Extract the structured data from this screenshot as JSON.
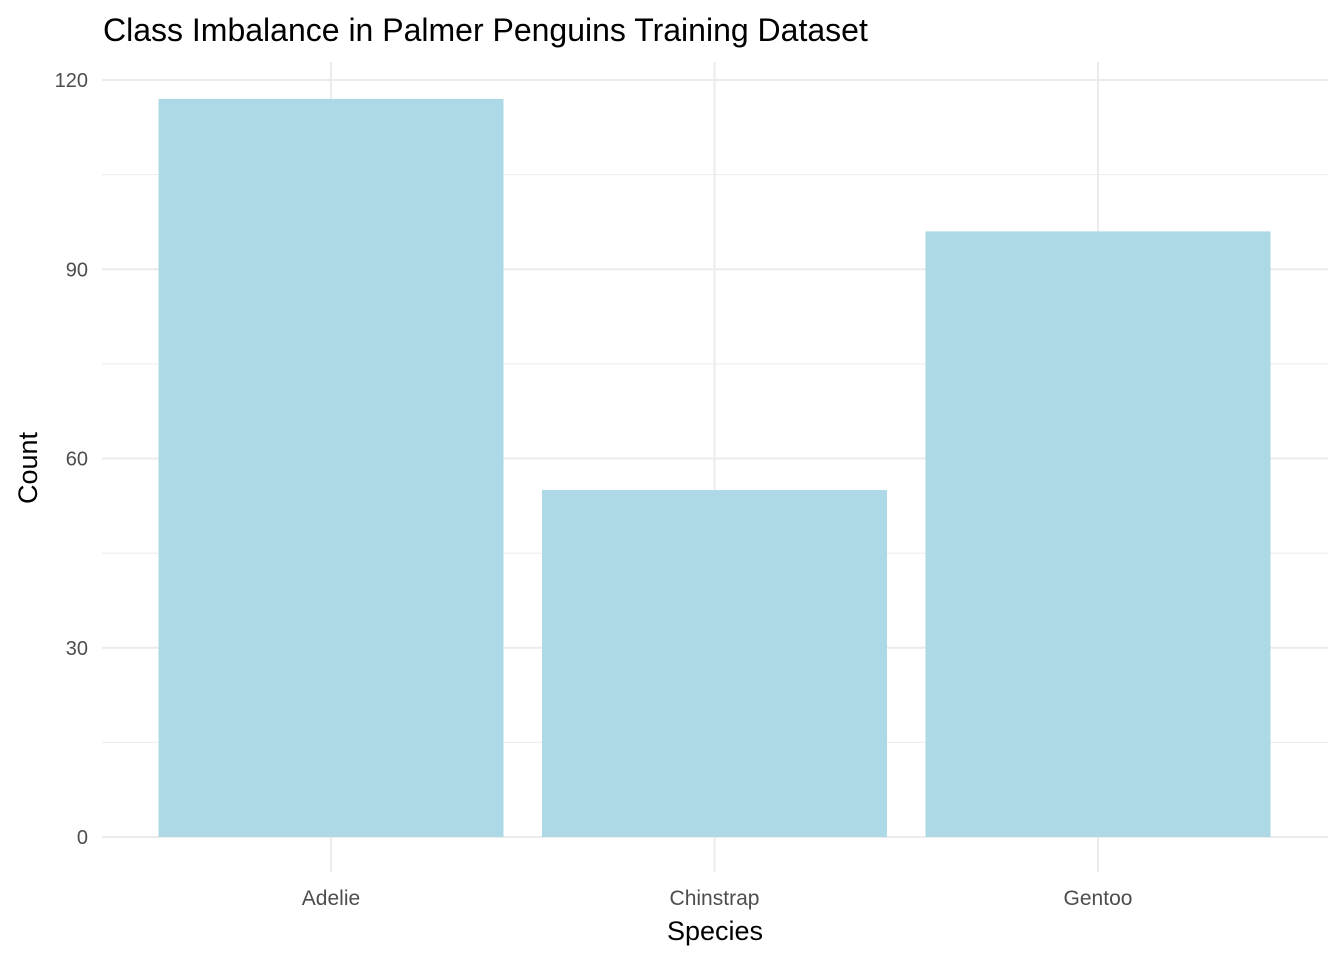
{
  "chart_data": {
    "type": "bar",
    "title": "Class Imbalance in Palmer Penguins Training Dataset",
    "xlabel": "Species",
    "ylabel": "Count",
    "categories": [
      "Adelie",
      "Chinstrap",
      "Gentoo"
    ],
    "values": [
      117,
      55,
      96
    ],
    "ylim": [
      0,
      120
    ],
    "yticks": [
      0,
      30,
      60,
      90,
      120
    ],
    "grid": true,
    "legend": "none",
    "bar_color": "#ADD8E6",
    "grid_color": "#EBEBEB"
  }
}
